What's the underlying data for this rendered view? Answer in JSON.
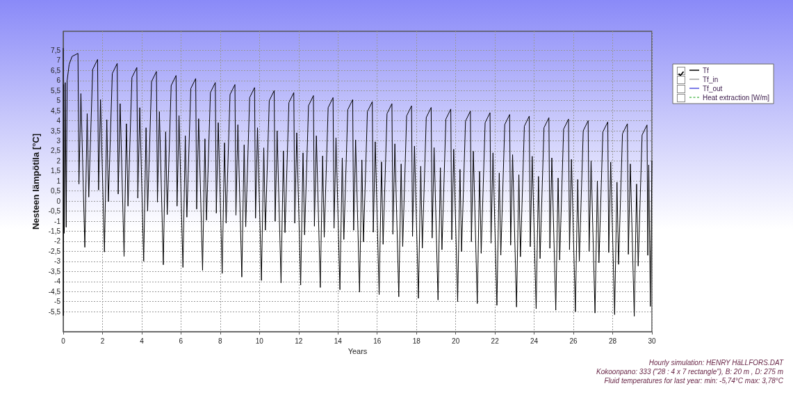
{
  "chart_data": {
    "type": "line",
    "xlabel": "Years",
    "ylabel": "Nesteen lämpötila [°C]",
    "xlim": [
      0,
      30
    ],
    "xticks": [
      0,
      2,
      4,
      6,
      8,
      10,
      12,
      14,
      16,
      18,
      20,
      22,
      24,
      26,
      28,
      30
    ],
    "ylim": [
      -6.5,
      8.45
    ],
    "yticks": [
      {
        "value": -5.5,
        "label": "-5,5"
      },
      -5,
      {
        "value": -4.5,
        "label": "-4,5"
      },
      -4,
      {
        "value": -3.5,
        "label": "-3,5"
      },
      -3,
      {
        "value": -2.5,
        "label": "-2,5"
      },
      -2,
      {
        "value": -1.5,
        "label": "-1,5"
      },
      -1,
      {
        "value": -0.5,
        "label": "-0,5"
      },
      0,
      {
        "value": 0.5,
        "label": "0,5"
      },
      1,
      {
        "value": 1.5,
        "label": "1,5"
      },
      2,
      {
        "value": 2.5,
        "label": "2,5"
      },
      3,
      {
        "value": 3.5,
        "label": "3,5"
      },
      4,
      {
        "value": 4.5,
        "label": "4,5"
      },
      5,
      {
        "value": 5.5,
        "label": "5,5"
      },
      6,
      {
        "value": 6.5,
        "label": "6,5"
      },
      7,
      {
        "value": 7.5,
        "label": "7,5"
      }
    ],
    "grid": true,
    "legend": "top right",
    "marker": "none",
    "line_style": "solid",
    "annotations": [
      "Hourly simulation: HENRY HäLLFORS.DAT",
      "Kokoonpano: 333 (\"28 : 4 x 7 rectangle\"), B: 20 m , D: 275 m",
      "Fluid temperatures for last year: min: -5,74°C max: 3,78°C"
    ],
    "series": [
      {
        "name": "Tf",
        "color": "#000000",
        "x": [
          0,
          0.005,
          0.02,
          0.05,
          0.1,
          0.15,
          0.2,
          0.3,
          0.45,
          0.75,
          0.8,
          0.9,
          1.1,
          1.22,
          1.3,
          1.5,
          1.75,
          1.8,
          1.9,
          2.1,
          2.22,
          2.3,
          2.5,
          2.75,
          2.8,
          2.9,
          3.1,
          3.22,
          3.3,
          3.5,
          3.75,
          3.8,
          3.9,
          4.1,
          4.22,
          4.3,
          4.5,
          4.75,
          4.8,
          4.9,
          5.1,
          5.22,
          5.3,
          5.5,
          5.75,
          5.8,
          5.9,
          6.1,
          6.22,
          6.3,
          6.5,
          6.75,
          6.8,
          6.9,
          7.1,
          7.22,
          7.3,
          7.5,
          7.75,
          7.8,
          7.9,
          8.1,
          8.22,
          8.3,
          8.5,
          8.75,
          8.8,
          8.9,
          9.1,
          9.22,
          9.3,
          9.5,
          9.75,
          9.8,
          9.9,
          10.1,
          10.22,
          10.3,
          10.5,
          10.75,
          10.8,
          10.9,
          11.1,
          11.22,
          11.3,
          11.5,
          11.75,
          11.8,
          11.9,
          12.1,
          12.22,
          12.3,
          12.5,
          12.75,
          12.8,
          12.9,
          13.1,
          13.22,
          13.3,
          13.5,
          13.75,
          13.8,
          13.9,
          14.1,
          14.22,
          14.3,
          14.5,
          14.75,
          14.8,
          14.9,
          15.1,
          15.22,
          15.3,
          15.5,
          15.75,
          15.8,
          15.9,
          16.1,
          16.22,
          16.3,
          16.5,
          16.75,
          16.8,
          16.9,
          17.1,
          17.22,
          17.3,
          17.5,
          17.75,
          17.8,
          17.9,
          18.1,
          18.22,
          18.3,
          18.5,
          18.75,
          18.8,
          18.9,
          19.1,
          19.22,
          19.3,
          19.5,
          19.75,
          19.8,
          19.9,
          20.1,
          20.22,
          20.3,
          20.5,
          20.75,
          20.8,
          20.9,
          21.1,
          21.22,
          21.3,
          21.5,
          21.75,
          21.8,
          21.9,
          22.1,
          22.22,
          22.3,
          22.5,
          22.75,
          22.8,
          22.9,
          23.1,
          23.22,
          23.3,
          23.5,
          23.75,
          23.8,
          23.9,
          24.1,
          24.22,
          24.3,
          24.5,
          24.75,
          24.8,
          24.9,
          25.1,
          25.22,
          25.3,
          25.5,
          25.75,
          25.8,
          25.9,
          26.1,
          26.22,
          26.3,
          26.5,
          26.75,
          26.8,
          26.9,
          27.1,
          27.22,
          27.3,
          27.5,
          27.75,
          27.8,
          27.9,
          28.1,
          28.22,
          28.3,
          28.5,
          28.75,
          28.8,
          28.9,
          29.1,
          29.22,
          29.3,
          29.5,
          29.75,
          29.79,
          29.84,
          29.92,
          30
        ],
        "values": [
          7.6,
          -5.7,
          5.8,
          -1.6,
          5.9,
          -1.3,
          6.0,
          6.8,
          7.2,
          7.35,
          0.85,
          5.35,
          -2.3,
          4.35,
          0.2,
          6.55,
          7.05,
          0.55,
          5.05,
          -2.53,
          4.05,
          -0.03,
          6.35,
          6.85,
          0.35,
          4.85,
          -2.75,
          3.85,
          -0.25,
          6.15,
          6.65,
          0.15,
          4.65,
          -2.99,
          3.65,
          -0.49,
          5.95,
          6.45,
          -0.05,
          4.45,
          -3.17,
          3.45,
          -0.67,
          5.75,
          6.25,
          -0.25,
          4.25,
          -3.3,
          3.25,
          -0.8,
          5.6,
          6.1,
          -0.4,
          4.1,
          -3.45,
          3.1,
          -0.95,
          5.4,
          5.9,
          -0.6,
          3.9,
          -3.6,
          2.9,
          -1.1,
          5.3,
          5.8,
          -0.7,
          3.8,
          -3.78,
          2.8,
          -1.28,
          5.15,
          5.65,
          -0.85,
          3.65,
          -3.95,
          2.65,
          -1.45,
          5.0,
          5.5,
          -1.0,
          3.5,
          -4.07,
          2.5,
          -1.57,
          4.9,
          5.4,
          -1.1,
          3.4,
          -4.18,
          2.4,
          -1.68,
          4.75,
          5.25,
          -1.25,
          3.25,
          -4.3,
          2.25,
          -1.8,
          4.65,
          5.15,
          -1.35,
          3.15,
          -4.41,
          2.15,
          -1.91,
          4.55,
          5.05,
          -1.45,
          3.05,
          -4.53,
          2.05,
          -2.03,
          4.45,
          4.95,
          -1.55,
          2.95,
          -4.65,
          1.95,
          -2.15,
          4.35,
          4.85,
          -1.65,
          2.85,
          -4.76,
          1.85,
          -2.26,
          4.24,
          4.74,
          -1.76,
          2.74,
          -4.84,
          1.74,
          -2.34,
          4.16,
          4.66,
          -1.84,
          2.66,
          -4.92,
          1.66,
          -2.42,
          4.08,
          4.58,
          -1.92,
          2.58,
          -5.01,
          1.58,
          -2.51,
          3.98,
          4.48,
          -2.02,
          2.48,
          -5.1,
          1.48,
          -2.6,
          3.9,
          4.4,
          -2.1,
          2.4,
          -5.19,
          1.4,
          -2.69,
          3.81,
          4.31,
          -2.19,
          2.31,
          -5.27,
          1.31,
          -2.77,
          3.73,
          4.23,
          -2.27,
          2.23,
          -5.36,
          1.23,
          -2.86,
          3.65,
          4.15,
          -2.35,
          2.15,
          -5.43,
          1.15,
          -2.93,
          3.58,
          4.08,
          -2.42,
          2.08,
          -5.5,
          1.08,
          -3.0,
          3.5,
          4.0,
          -2.5,
          2.0,
          -5.57,
          1.0,
          -3.07,
          3.44,
          3.94,
          -2.56,
          1.94,
          -5.65,
          0.94,
          -3.15,
          3.35,
          3.85,
          -2.65,
          1.85,
          -5.73,
          0.85,
          -3.23,
          3.29,
          3.79,
          -2.7,
          1.8,
          -5.24,
          2.0
        ]
      },
      {
        "name": "Tf_in",
        "color": "#a0a0a0"
      },
      {
        "name": "Tf_out",
        "color": "#5050e0"
      },
      {
        "name": "Heat extraction [W/m]",
        "color": "#60c060",
        "line_style": "dashed"
      }
    ]
  }
}
